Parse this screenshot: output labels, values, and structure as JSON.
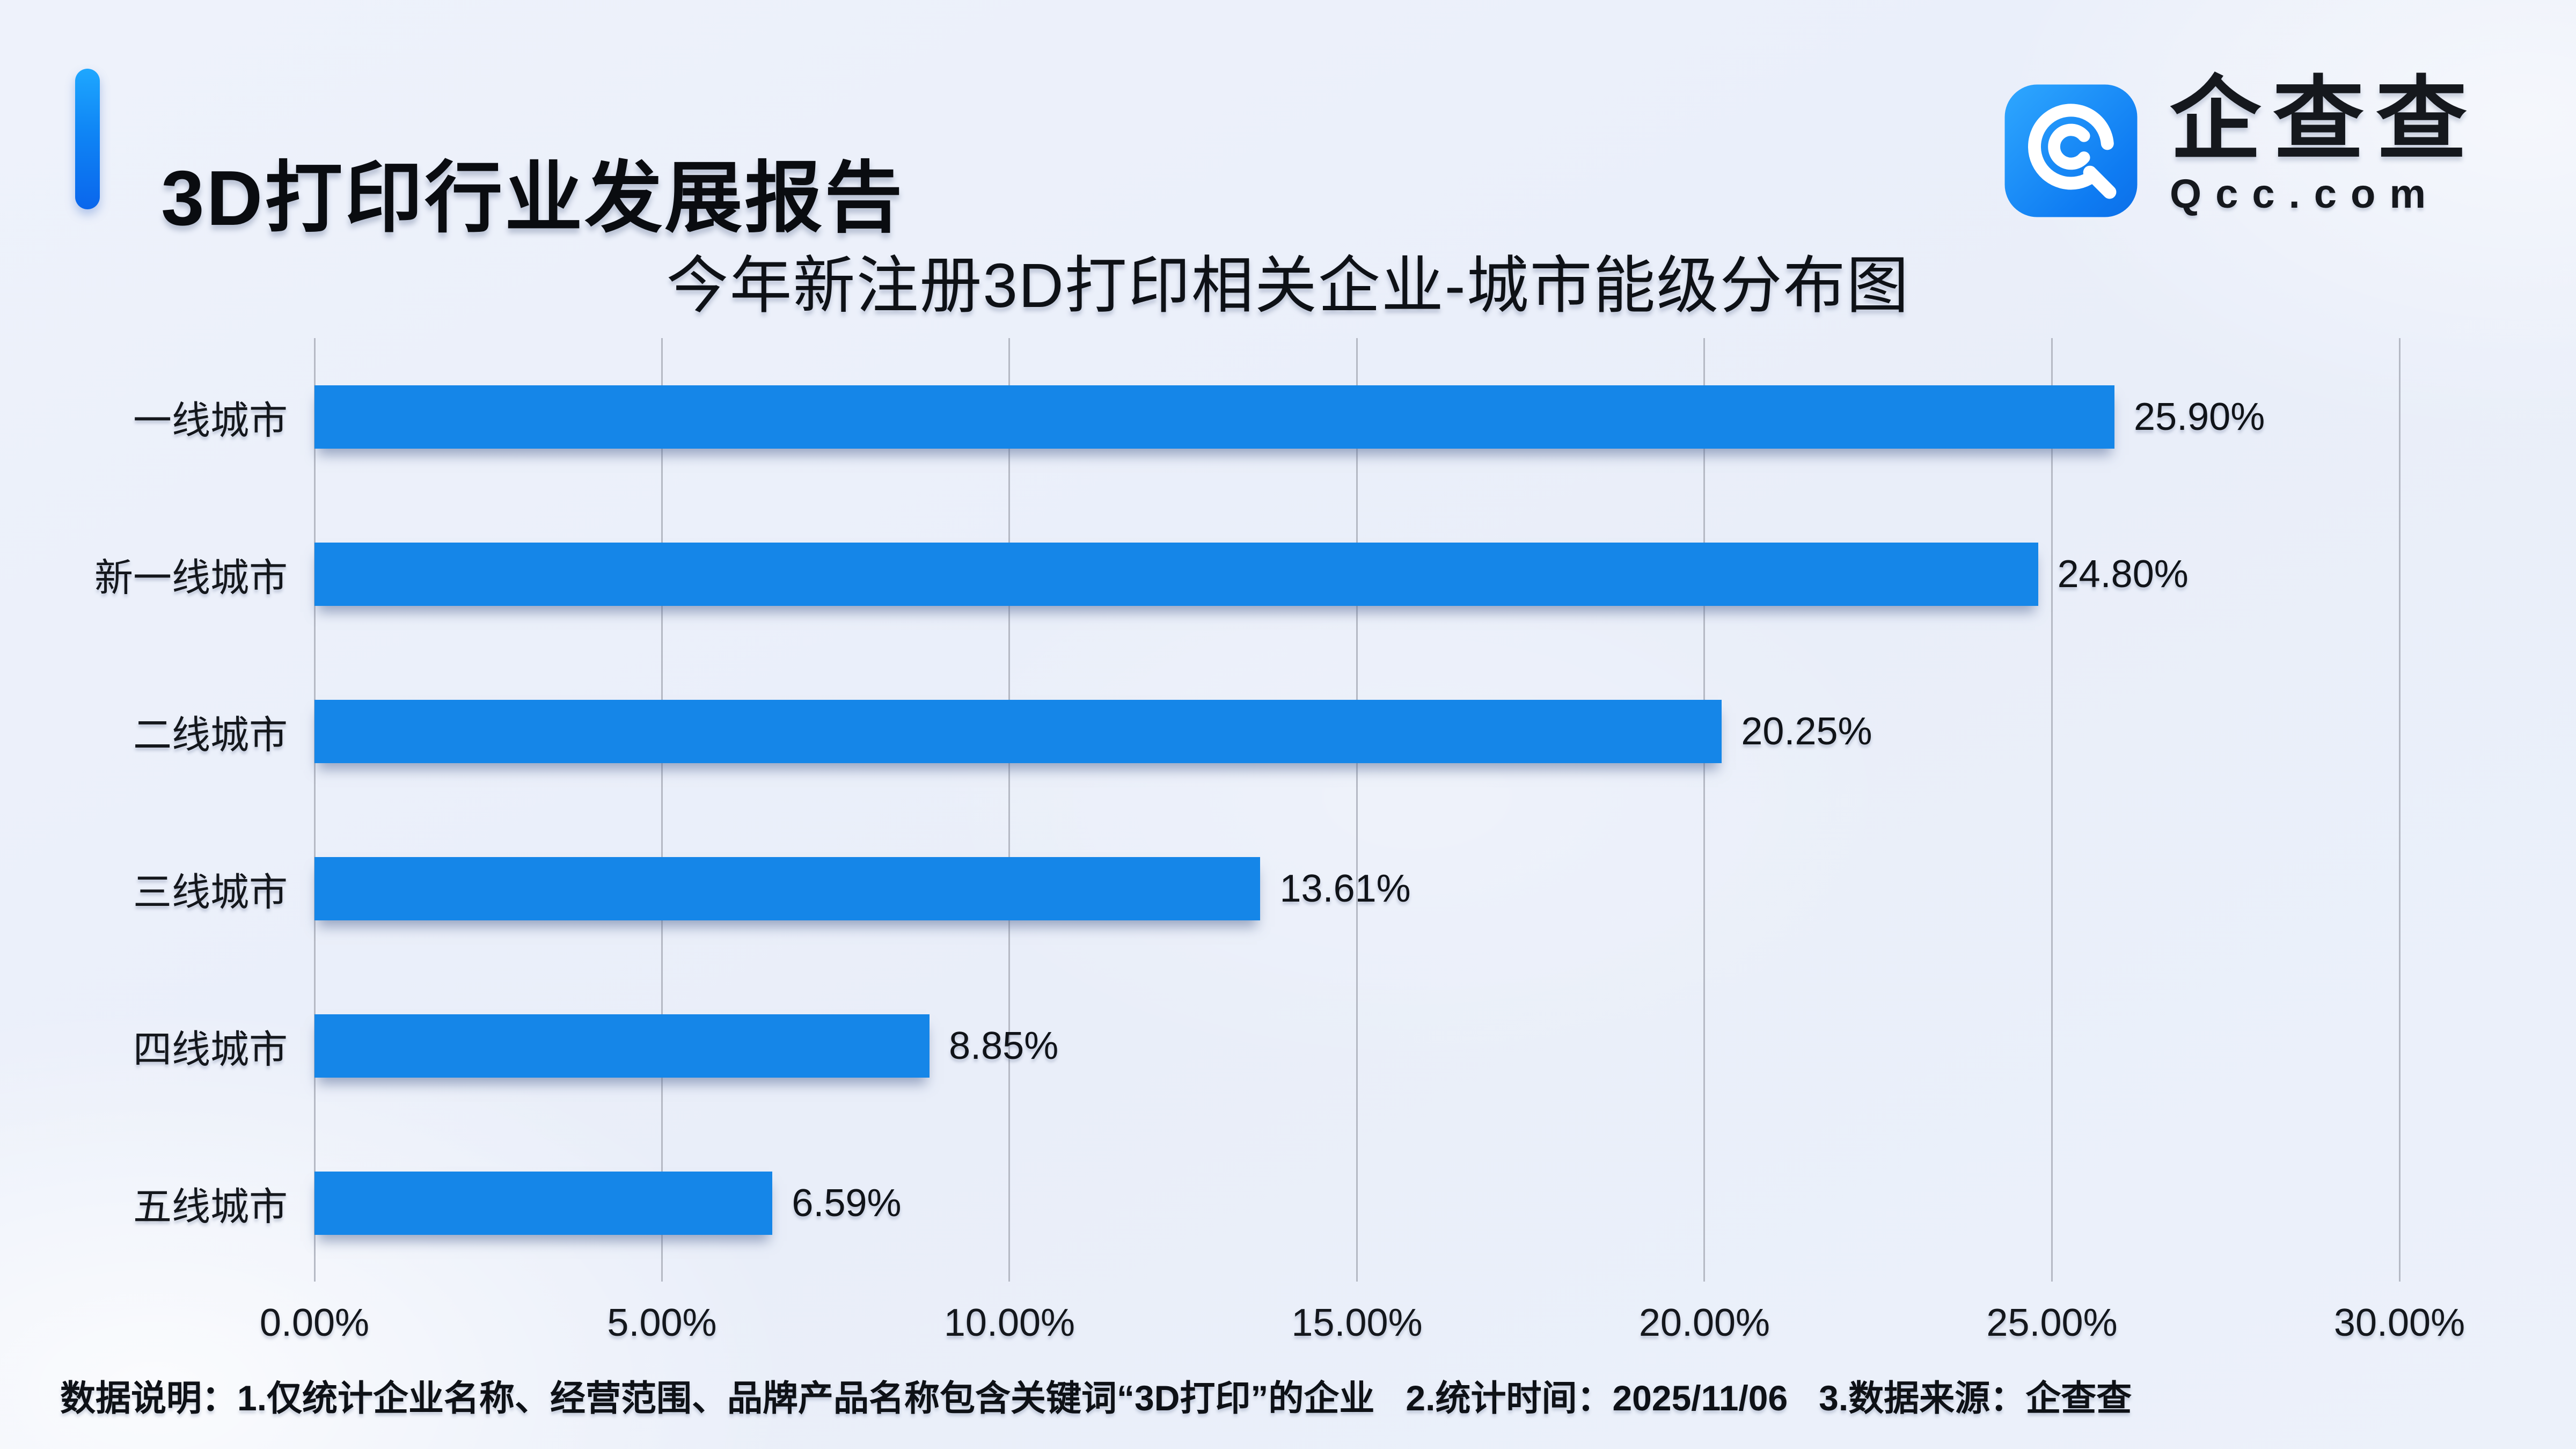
{
  "header": {
    "title": "3D打印行业发展报告",
    "logo": {
      "brand": "企查查",
      "domain": "Qcc.com",
      "icon": "qcc-magnifier-q-icon"
    }
  },
  "chart_data": {
    "type": "bar",
    "orientation": "horizontal",
    "title": "今年新注册3D打印相关企业-城市能级分布图",
    "categories": [
      "一线城市",
      "新一线城市",
      "二线城市",
      "三线城市",
      "四线城市",
      "五线城市"
    ],
    "values": [
      25.9,
      24.8,
      20.25,
      13.61,
      8.85,
      6.59
    ],
    "value_labels": [
      "25.90%",
      "24.80%",
      "20.25%",
      "13.61%",
      "8.85%",
      "6.59%"
    ],
    "x_ticks": [
      "0.00%",
      "5.00%",
      "10.00%",
      "15.00%",
      "20.00%",
      "25.00%",
      "30.00%"
    ],
    "xlim": [
      0,
      30
    ],
    "grid": true,
    "legend": "none",
    "xlabel": "",
    "ylabel": ""
  },
  "footer": {
    "segments": [
      "数据说明：1.仅统计企业名称、经营范围、品牌产品名称包含关键词“3D打印”的企业",
      "2.统计时间：2025/11/06",
      "3.数据来源：企查查"
    ]
  },
  "colors": {
    "bar": "#1586E8",
    "accent_top": "#1EA7FF",
    "accent_bottom": "#0A66EC",
    "icon_top": "#2FA8FF",
    "icon_bottom": "#0C6FE8",
    "gridline": "#B5B9C4",
    "background": "#EDF1FA",
    "text": "#14171C"
  }
}
